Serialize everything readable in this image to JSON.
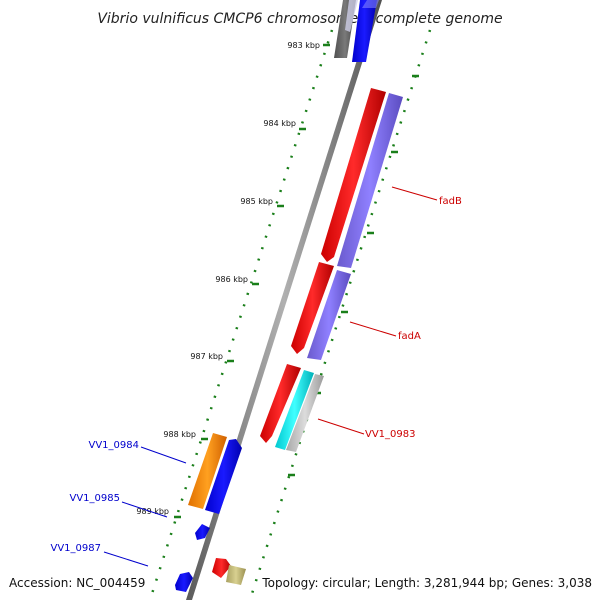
{
  "title": "Vibrio vulnificus CMCP6 chromosome I, complete genome",
  "footer": {
    "accession": "Accession: NC_004459",
    "summary": "Topology: circular; Length: 3,281,944 bp; Genes: 3,038"
  },
  "ticks": [
    {
      "label": "983 kbp"
    },
    {
      "label": "984 kbp"
    },
    {
      "label": "985 kbp"
    },
    {
      "label": "986 kbp"
    },
    {
      "label": "987 kbp"
    },
    {
      "label": "988 kbp"
    },
    {
      "label": "989 kbp"
    }
  ],
  "gene_labels": [
    {
      "label": "fadB",
      "color": "#cc0000"
    },
    {
      "label": "fadA",
      "color": "#cc0000"
    },
    {
      "label": "VV1_0983",
      "color": "#cc0000"
    },
    {
      "label": "VV1_0984",
      "color": "#0000cc"
    },
    {
      "label": "VV1_0985",
      "color": "#0000cc"
    },
    {
      "label": "VV1_0987",
      "color": "#0000cc"
    }
  ],
  "colors": {
    "backbone": "#808080",
    "tick": "#1a7f1a",
    "red": "#ff0000",
    "purple": "#7b68ee",
    "blue": "#0000ff",
    "orange": "#ff8c00",
    "cyan": "#00e5ee",
    "gray": "#bebebe",
    "dark_gray": "#606060",
    "khaki": "#bdb76b"
  }
}
